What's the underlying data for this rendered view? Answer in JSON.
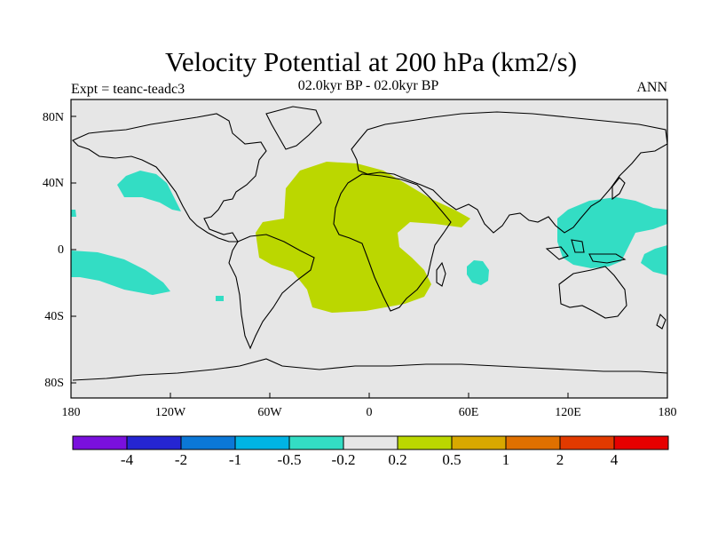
{
  "title": "Velocity Potential at 200 hPa (km2/s)",
  "subtitle": "02.0kyr BP - 02.0kyr BP",
  "experiment": "Expt = teanc-teadc3",
  "season": "ANN",
  "map": {
    "lat_ticks": [
      "80N",
      "40N",
      "0",
      "40S",
      "80S"
    ],
    "lon_ticks": [
      "180",
      "120W",
      "60W",
      "0",
      "60E",
      "120E",
      "180"
    ],
    "background_color": "#e6e6e6",
    "regions": [
      {
        "name": "atlantic-africa-positive",
        "level": "0.2 to 0.5",
        "color": "#bbd700"
      },
      {
        "name": "western-pacific-negative",
        "level": "-0.5 to -0.2",
        "color": "#33ddc4"
      },
      {
        "name": "north-pacific-negative",
        "level": "-0.5 to -0.2",
        "color": "#33ddc4"
      },
      {
        "name": "tropical-east-pacific-negative",
        "level": "-0.5 to -0.2",
        "color": "#33ddc4"
      },
      {
        "name": "indian-ocean-negative",
        "level": "-0.5 to -0.2",
        "color": "#33ddc4"
      }
    ]
  },
  "colorbar": {
    "labels": [
      "-4",
      "-2",
      "-1",
      "-0.5",
      "-0.2",
      "0.2",
      "0.5",
      "1",
      "2",
      "4"
    ],
    "colors": [
      "#7a10dd",
      "#2525d2",
      "#0b78d7",
      "#00b4e4",
      "#33ddc4",
      "#e6e6e6",
      "#bbd700",
      "#d8a800",
      "#e07000",
      "#e23a00",
      "#e60000"
    ]
  }
}
